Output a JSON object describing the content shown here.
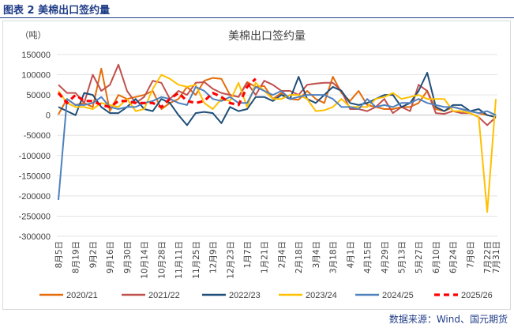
{
  "figure_label": "图表 2  美棉出口签约量",
  "source_note": "数据来源：Wind、国元期货",
  "colors": {
    "header_blue": "#1f3c88",
    "series": [
      "#E46C0A",
      "#C0504D",
      "#1F4E79",
      "#FFC000",
      "#4F81BD",
      "#FF0000"
    ]
  },
  "chart_data": {
    "type": "line",
    "title": "美棉出口签约量",
    "ylabel": "（吨）",
    "ylim": [
      -300000,
      150000
    ],
    "yticks": [
      "150000",
      "100000",
      "50000",
      "0",
      "-50000",
      "-100000",
      "-150000",
      "-200000",
      "-250000",
      "-300000"
    ],
    "grid": true,
    "legend_position": "bottom",
    "x": [
      "8月5日",
      "8月12日",
      "8月19日",
      "8月26日",
      "9月2日",
      "9月9日",
      "9月16日",
      "9月23日",
      "9月30日",
      "10月7日",
      "10月14日",
      "10月21日",
      "10月28日",
      "11月4日",
      "11月11日",
      "11月18日",
      "11月25日",
      "12月2日",
      "12月9日",
      "12月16日",
      "12月23日",
      "12月30日",
      "1月7日",
      "1月14日",
      "1月21日",
      "1月28日",
      "2月4日",
      "2月11日",
      "2月18日",
      "2月25日",
      "3月4日",
      "3月11日",
      "3月18日",
      "3月25日",
      "4月1日",
      "4月8日",
      "4月15日",
      "4月22日",
      "4月29日",
      "5月6日",
      "5月13日",
      "5月20日",
      "5月27日",
      "6月3日",
      "6月10日",
      "6月17日",
      "6月24日",
      "7月1日",
      "7月8日",
      "7月15日",
      "7月22日",
      "7月31日"
    ],
    "xtick_labels": [
      "8月5日",
      "8月19日",
      "9月2日",
      "9月16日",
      "9月30日",
      "10月14日",
      "10月28日",
      "11月11日",
      "11月25日",
      "12月9日",
      "12月23日",
      "1月7日",
      "1月21日",
      "2月4日",
      "2月18日",
      "3月4日",
      "3月18日",
      "4月1日",
      "4月15日",
      "4月29日",
      "5月13日",
      "5月27日",
      "6月10日",
      "6月24日",
      "7月8日",
      "7月22日",
      "7月31日"
    ],
    "series": [
      {
        "name": "2020/21",
        "values": [
          2000,
          40000,
          25000,
          30000,
          20000,
          115000,
          10000,
          50000,
          40000,
          45000,
          50000,
          60000,
          15000,
          30000,
          40000,
          70000,
          50000,
          85000,
          92000,
          90000,
          50000,
          45000,
          82000,
          70000,
          72000,
          40000,
          55000,
          40000,
          38000,
          60000,
          40000,
          30000,
          95000,
          55000,
          35000,
          60000,
          25000,
          20000,
          15000,
          15000,
          20000,
          20000,
          30000,
          60000,
          15000,
          10000,
          20000,
          15000,
          10000,
          5000,
          0,
          -5000
        ]
      },
      {
        "name": "2021/22",
        "values": [
          75000,
          55000,
          55000,
          30000,
          100000,
          60000,
          75000,
          125000,
          60000,
          30000,
          45000,
          85000,
          80000,
          40000,
          60000,
          50000,
          80000,
          82000,
          65000,
          55000,
          50000,
          45000,
          80000,
          50000,
          85000,
          75000,
          60000,
          60000,
          50000,
          75000,
          78000,
          80000,
          80000,
          60000,
          15000,
          15000,
          10000,
          20000,
          40000,
          5000,
          20000,
          10000,
          75000,
          60000,
          5000,
          3000,
          10000,
          5000,
          5000,
          -5000,
          -25000,
          -5000
        ]
      },
      {
        "name": "2022/23",
        "values": [
          20000,
          10000,
          0,
          55000,
          50000,
          20000,
          5000,
          5000,
          20000,
          40000,
          15000,
          10000,
          40000,
          30000,
          0,
          -25000,
          5000,
          8000,
          5000,
          -20000,
          20000,
          10000,
          15000,
          45000,
          45000,
          35000,
          50000,
          40000,
          95000,
          40000,
          30000,
          50000,
          70000,
          60000,
          30000,
          25000,
          30000,
          40000,
          50000,
          50000,
          20000,
          30000,
          60000,
          105000,
          20000,
          10000,
          25000,
          25000,
          10000,
          15000,
          0,
          -5000
        ]
      },
      {
        "name": "2023/24",
        "values": [
          60000,
          30000,
          20000,
          20000,
          15000,
          30000,
          25000,
          20000,
          40000,
          10000,
          15000,
          65000,
          100000,
          90000,
          75000,
          70000,
          75000,
          30000,
          15000,
          40000,
          35000,
          80000,
          20000,
          80000,
          60000,
          40000,
          40000,
          50000,
          50000,
          40000,
          10000,
          12000,
          20000,
          40000,
          20000,
          20000,
          20000,
          40000,
          45000,
          55000,
          40000,
          45000,
          50000,
          40000,
          40000,
          40000,
          10000,
          10000,
          5000,
          -5000,
          -240000,
          40000
        ]
      },
      {
        "name": "2024/25",
        "values": [
          -210000,
          40000,
          25000,
          25000,
          30000,
          45000,
          20000,
          15000,
          20000,
          20000,
          30000,
          35000,
          45000,
          40000,
          30000,
          25000,
          70000,
          60000,
          40000,
          35000,
          45000,
          30000,
          30000,
          70000,
          60000,
          50000,
          60000,
          40000,
          45000,
          50000,
          50000,
          50000,
          40000,
          20000,
          20000,
          15000,
          40000,
          20000,
          25000,
          20000,
          30000,
          30000,
          40000,
          30000,
          25000,
          20000,
          20000,
          15000,
          10000,
          5000,
          10000,
          0
        ]
      },
      {
        "name": "2025/26",
        "values": [
          55000,
          30000,
          50000,
          35000,
          35000,
          25000,
          20000,
          35000,
          35000,
          30000,
          30000,
          30000,
          20000,
          40000,
          55000,
          35000,
          30000,
          35000,
          55000,
          45000,
          30000,
          25000,
          70000,
          90000,
          null,
          null,
          null,
          null,
          null,
          null,
          null,
          null,
          null,
          null,
          null,
          null,
          null,
          null,
          null,
          null,
          null,
          null,
          null,
          null,
          null,
          null,
          null,
          null,
          null,
          null,
          null,
          null
        ]
      }
    ]
  }
}
